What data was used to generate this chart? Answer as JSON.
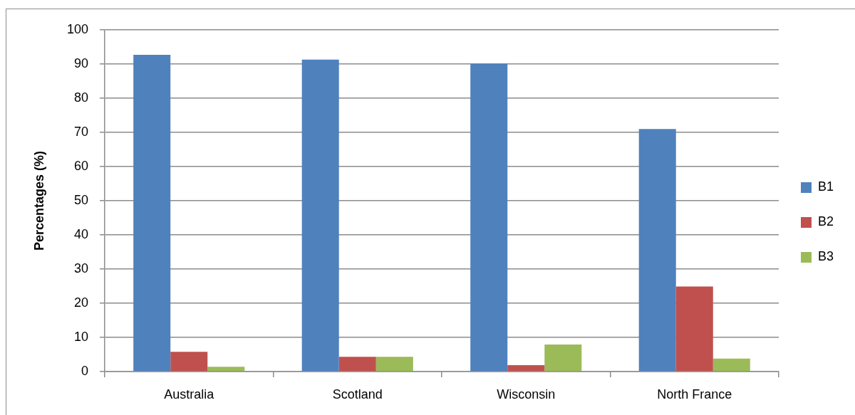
{
  "chart_data": {
    "type": "bar",
    "ylabel": "Percentages (%)",
    "categories": [
      "Australia",
      "Scotland",
      "Wisconsin",
      "North France"
    ],
    "series": [
      {
        "name": "B1",
        "color": "#4f81bd",
        "values": [
          92.7,
          91.3,
          90.1,
          71.0
        ]
      },
      {
        "name": "B2",
        "color": "#c0504d",
        "values": [
          5.8,
          4.3,
          1.9,
          24.9
        ]
      },
      {
        "name": "B3",
        "color": "#9bbb59",
        "values": [
          1.4,
          4.3,
          7.9,
          3.8
        ]
      }
    ],
    "ylim": [
      0,
      100
    ],
    "yticks": [
      0,
      10,
      20,
      30,
      40,
      50,
      60,
      70,
      80,
      90,
      100
    ],
    "grid": "y",
    "legend": "right"
  }
}
